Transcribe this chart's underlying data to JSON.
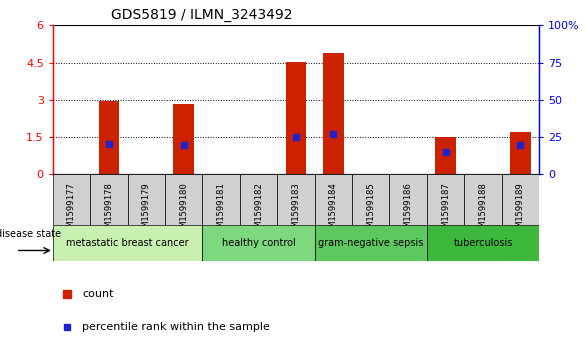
{
  "title": "GDS5819 / ILMN_3243492",
  "samples": [
    "GSM1599177",
    "GSM1599178",
    "GSM1599179",
    "GSM1599180",
    "GSM1599181",
    "GSM1599182",
    "GSM1599183",
    "GSM1599184",
    "GSM1599185",
    "GSM1599186",
    "GSM1599187",
    "GSM1599188",
    "GSM1599189"
  ],
  "counts": [
    0,
    2.97,
    0,
    2.82,
    0,
    0,
    4.52,
    4.88,
    0,
    0,
    1.5,
    0,
    1.7
  ],
  "percentile_ranks_left": [
    null,
    1.22,
    null,
    1.18,
    null,
    null,
    1.5,
    1.62,
    null,
    null,
    0.9,
    null,
    1.18
  ],
  "ylim_left": [
    0,
    6
  ],
  "ylim_right": [
    0,
    100
  ],
  "yticks_left": [
    0,
    1.5,
    3.0,
    4.5,
    6.0
  ],
  "ytick_labels_left": [
    "0",
    "1.5",
    "3",
    "4.5",
    "6"
  ],
  "yticks_right": [
    0,
    25,
    50,
    75,
    100
  ],
  "ytick_labels_right": [
    "0",
    "25",
    "50",
    "75",
    "100%"
  ],
  "disease_groups": [
    {
      "label": "metastatic breast cancer",
      "start": 0,
      "end": 4,
      "color": "#c8f0b0"
    },
    {
      "label": "healthy control",
      "start": 4,
      "end": 7,
      "color": "#7ed87e"
    },
    {
      "label": "gram-negative sepsis",
      "start": 7,
      "end": 10,
      "color": "#5dc85d"
    },
    {
      "label": "tuberculosis",
      "start": 10,
      "end": 13,
      "color": "#3cb83c"
    }
  ],
  "bar_color": "#cc2200",
  "percentile_color": "#2222cc",
  "sample_cell_color": "#d0d0d0",
  "plot_bg": "#ffffff",
  "disease_label": "disease state"
}
